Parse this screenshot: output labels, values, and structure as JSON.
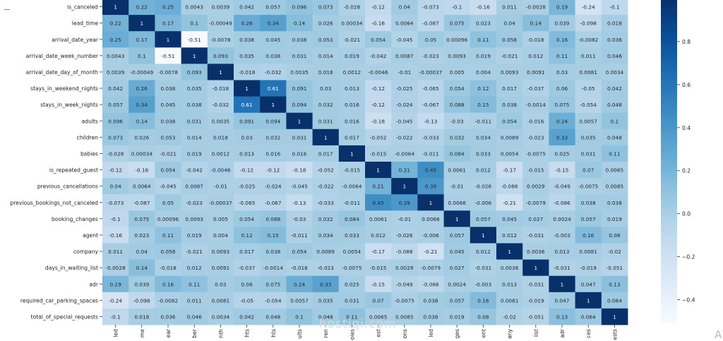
{
  "chart_data": {
    "type": "heatmap",
    "title": "",
    "xlabel": "",
    "ylabel": "",
    "row_labels": [
      "is_canceled",
      "lead_time",
      "arrival_date_year",
      "arrival_date_week_number",
      "arrival_date_day_of_month",
      "stays_in_weekend_nights",
      "stays_in_week_nights",
      "adults",
      "children",
      "babies",
      "is_repeated_guest",
      "previous_cancellations",
      "previous_bookings_not_canceled",
      "booking_changes",
      "agent",
      "company",
      "days_in_waiting_list",
      "adr",
      "required_car_parking_spaces",
      "total_of_special_requests"
    ],
    "col_labels_visible": [
      "led",
      "me",
      "ear",
      "ber",
      "nth",
      "hts",
      "hts",
      "ults",
      "ren",
      "oies",
      "est",
      "ons",
      "led",
      "ges",
      "ent",
      "any",
      "list",
      "adr",
      "ces",
      "ests"
    ],
    "values": [
      [
        "1",
        "0.22",
        "0.25",
        "0.0043",
        "0.0039",
        "0.042",
        "0.057",
        "0.096",
        "0.073",
        "-0.028",
        "-0.12",
        "0.04",
        "-0.073",
        "-0.1",
        "-0.16",
        "0.011",
        "-0.0028",
        "0.19",
        "-0.24",
        "-0.1"
      ],
      [
        "0.22",
        "1",
        "0.17",
        "0.1",
        "-0.00049",
        "0.26",
        "0.34",
        "0.14",
        "0.026",
        "0.00034",
        "-0.16",
        "0.0064",
        "-0.087",
        "0.075",
        "0.023",
        "0.04",
        "0.14",
        "0.039",
        "-0.098",
        "0.018"
      ],
      [
        "0.25",
        "0.17",
        "1",
        "-0.51",
        "-0.0078",
        "0.038",
        "0.045",
        "0.038",
        "0.053",
        "-0.021",
        "0.054",
        "-0.045",
        "0.05",
        "0.00096",
        "0.11",
        "0.058",
        "-0.018",
        "0.16",
        "-0.0082",
        "0.036"
      ],
      [
        "0.0043",
        "0.1",
        "-0.51",
        "1",
        "0.093",
        "0.035",
        "0.038",
        "0.031",
        "0.014",
        "0.019",
        "-0.042",
        "0.0087",
        "-0.023",
        "0.0093",
        "0.019",
        "-0.021",
        "0.012",
        "0.11",
        "0.011",
        "0.046"
      ],
      [
        "0.0039",
        "-0.00049",
        "-0.0078",
        "0.093",
        "1",
        "-0.018",
        "-0.032",
        "0.0035",
        "0.018",
        "0.0012",
        "-0.0046",
        "-0.01",
        "-0.00037",
        "0.005",
        "0.004",
        "0.0093",
        "0.0091",
        "0.03",
        "0.0081",
        "0.0034"
      ],
      [
        "0.042",
        "0.26",
        "0.038",
        "0.035",
        "-0.018",
        "1",
        "0.61",
        "0.091",
        "0.03",
        "0.013",
        "-0.12",
        "-0.025",
        "-0.065",
        "0.054",
        "0.12",
        "0.017",
        "-0.037",
        "0.06",
        "-0.05",
        "0.042"
      ],
      [
        "0.057",
        "0.34",
        "0.045",
        "0.038",
        "-0.032",
        "0.61",
        "1",
        "0.094",
        "0.032",
        "0.016",
        "-0.12",
        "-0.024",
        "-0.067",
        "0.088",
        "0.15",
        "0.038",
        "-0.0014",
        "0.075",
        "-0.054",
        "0.048"
      ],
      [
        "0.096",
        "0.14",
        "0.038",
        "0.031",
        "0.0035",
        "0.091",
        "0.094",
        "1",
        "0.031",
        "0.016",
        "-0.18",
        "-0.045",
        "-0.13",
        "-0.03",
        "-0.011",
        "0.054",
        "-0.016",
        "0.24",
        "0.0057",
        "0.1"
      ],
      [
        "0.073",
        "0.026",
        "0.053",
        "0.014",
        "0.018",
        "0.03",
        "0.032",
        "0.031",
        "1",
        "0.017",
        "-0.052",
        "-0.022",
        "-0.033",
        "0.032",
        "0.034",
        "0.0089",
        "-0.023",
        "0.33",
        "0.035",
        "0.048"
      ],
      [
        "-0.028",
        "0.00034",
        "-0.021",
        "0.019",
        "0.0012",
        "0.013",
        "0.016",
        "0.016",
        "0.017",
        "1",
        "-0.015",
        "-0.0064",
        "-0.011",
        "0.084",
        "0.033",
        "0.0054",
        "-0.0075",
        "0.025",
        "0.031",
        "0.11"
      ],
      [
        "-0.12",
        "-0.16",
        "0.054",
        "-0.042",
        "-0.0046",
        "-0.12",
        "-0.12",
        "-0.18",
        "-0.052",
        "-0.015",
        "1",
        "0.21",
        "0.45",
        "0.0061",
        "0.012",
        "-0.17",
        "-0.015",
        "-0.15",
        "0.07",
        "0.0065"
      ],
      [
        "0.04",
        "0.0064",
        "-0.045",
        "0.0087",
        "-0.01",
        "-0.025",
        "-0.024",
        "-0.045",
        "-0.022",
        "-0.0064",
        "0.21",
        "1",
        "0.39",
        "-0.01",
        "-0.026",
        "-0.088",
        "0.0029",
        "-0.049",
        "-0.0075",
        "0.0085"
      ],
      [
        "-0.073",
        "-0.087",
        "0.05",
        "-0.023",
        "-0.00037",
        "-0.065",
        "-0.067",
        "-0.13",
        "-0.033",
        "-0.011",
        "0.45",
        "0.39",
        "1",
        "0.0066",
        "-0.006",
        "-0.21",
        "-0.0079",
        "-0.086",
        "0.038",
        "0.038"
      ],
      [
        "-0.1",
        "0.075",
        "0.00096",
        "0.0093",
        "0.005",
        "0.054",
        "0.088",
        "-0.03",
        "0.032",
        "0.084",
        "0.0061",
        "-0.01",
        "0.0066",
        "1",
        "0.057",
        "0.045",
        "0.027",
        "0.0024",
        "0.057",
        "0.019"
      ],
      [
        "-0.16",
        "0.023",
        "0.11",
        "0.019",
        "0.004",
        "0.12",
        "0.15",
        "-0.011",
        "0.034",
        "0.033",
        "0.012",
        "-0.026",
        "-0.006",
        "0.057",
        "1",
        "0.012",
        "-0.031",
        "-0.003",
        "0.16",
        "0.08"
      ],
      [
        "0.011",
        "0.04",
        "0.058",
        "-0.021",
        "0.0093",
        "0.017",
        "0.038",
        "0.054",
        "0.0089",
        "0.0054",
        "-0.17",
        "-0.088",
        "-0.21",
        "0.045",
        "0.012",
        "1",
        "0.0036",
        "0.013",
        "0.0081",
        "-0.02"
      ],
      [
        "-0.0028",
        "0.14",
        "-0.018",
        "0.012",
        "0.0091",
        "-0.037",
        "-0.0014",
        "-0.016",
        "-0.023",
        "-0.0075",
        "-0.015",
        "0.0029",
        "-0.0079",
        "0.027",
        "-0.031",
        "0.0036",
        "1",
        "-0.031",
        "-0.019",
        "-0.051"
      ],
      [
        "0.19",
        "0.039",
        "0.16",
        "0.11",
        "0.03",
        "0.06",
        "0.075",
        "0.24",
        "0.33",
        "0.025",
        "-0.15",
        "-0.049",
        "-0.086",
        "0.0024",
        "-0.003",
        "0.013",
        "-0.031",
        "1",
        "0.047",
        "0.13"
      ],
      [
        "-0.24",
        "-0.098",
        "-0.0082",
        "0.011",
        "0.0081",
        "-0.05",
        "-0.054",
        "0.0057",
        "0.035",
        "0.031",
        "0.07",
        "-0.0075",
        "0.038",
        "0.057",
        "0.16",
        "0.0081",
        "-0.019",
        "0.047",
        "1",
        "0.064"
      ],
      [
        "-0.1",
        "0.018",
        "0.036",
        "0.046",
        "0.0034",
        "0.042",
        "0.048",
        "0.1",
        "0.048",
        "0.11",
        "0.0065",
        "0.0085",
        "0.038",
        "0.019",
        "0.08",
        "-0.02",
        "-0.051",
        "0.13",
        "0.064",
        "1"
      ]
    ],
    "zlim": [
      -0.51,
      1
    ],
    "colorbar_ticks": [
      "0.8",
      "0.6",
      "0.4",
      "0.2",
      "0.0",
      "−0.2",
      "−0.4"
    ],
    "colormap": "Blues",
    "annotate": true
  },
  "watermark": "hostiqi.com",
  "corner_glyph": "A"
}
